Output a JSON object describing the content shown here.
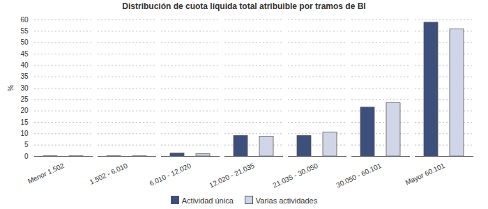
{
  "chart_data": {
    "type": "bar",
    "title": "Distribución de cuota líquida total atribuible por tramos de BI",
    "y_label": "%",
    "categories": [
      "Menor 1.502",
      "1.502 - 6.010",
      "6.010 - 12.020",
      "12.020 - 21.035",
      "21.035 - 30.050",
      "30.050 - 60.101",
      "Mayor 60.101"
    ],
    "series": [
      {
        "name": "Actividad única",
        "color": "#3d4f7c",
        "values": [
          0.1,
          0.1,
          1.3,
          9.0,
          9.0,
          21.5,
          58.8
        ]
      },
      {
        "name": "Varias actividades",
        "color": "#d0d5e8",
        "values": [
          0.1,
          0.1,
          1.0,
          8.7,
          10.5,
          23.4,
          55.9
        ]
      }
    ],
    "ylim": [
      0,
      60
    ],
    "yticks": [
      0,
      5,
      10,
      15,
      20,
      25,
      30,
      35,
      40,
      45,
      50,
      55,
      60
    ],
    "grid": true,
    "legend": "bottom"
  }
}
